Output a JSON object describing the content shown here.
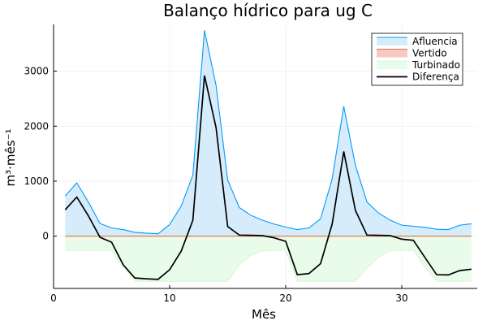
{
  "chart_data": {
    "type": "area",
    "title": "Balanço hídrico para ug C",
    "xlabel": "Mês",
    "ylabel": "m³·mês⁻¹",
    "xlim": [
      0,
      36.5
    ],
    "ylim": [
      -950,
      3850
    ],
    "xticks": [
      0,
      10,
      20,
      30
    ],
    "yticks": [
      0,
      1000,
      2000,
      3000
    ],
    "grid": true,
    "legend_position": "top-right",
    "colors": {
      "afluencia_line": "#009AFA",
      "afluencia_fill": "#D6ECFB",
      "vertido_line": "#E26F46",
      "vertido_fill": "#F8C9C2",
      "turbinado_line": "#D8F5D8",
      "turbinado_fill": "#E9FBE9",
      "diferenca_line": "#000000"
    },
    "x": [
      1,
      2,
      3,
      4,
      5,
      6,
      7,
      8,
      9,
      10,
      11,
      12,
      13,
      14,
      15,
      16,
      17,
      18,
      19,
      20,
      21,
      22,
      23,
      24,
      25,
      26,
      27,
      28,
      29,
      30,
      31,
      32,
      33,
      34,
      35,
      36
    ],
    "series": [
      {
        "name": "Afluencia",
        "style": "filled-area",
        "values": [
          730,
          970,
          620,
          230,
          150,
          120,
          70,
          55,
          45,
          210,
          550,
          1110,
          3740,
          2740,
          1020,
          520,
          380,
          290,
          220,
          165,
          120,
          150,
          315,
          1040,
          2360,
          1290,
          620,
          420,
          290,
          200,
          180,
          160,
          125,
          120,
          200,
          225
        ]
      },
      {
        "name": "Vertido",
        "style": "filled-area",
        "values": [
          0,
          0,
          0,
          0,
          0,
          0,
          0,
          0,
          0,
          0,
          0,
          0,
          0,
          0,
          0,
          0,
          0,
          0,
          0,
          0,
          0,
          0,
          0,
          0,
          0,
          0,
          0,
          0,
          0,
          0,
          0,
          0,
          0,
          0,
          0,
          0
        ]
      },
      {
        "name": "Turbinado",
        "style": "filled-area",
        "values": [
          -260,
          -260,
          -260,
          -260,
          -260,
          -560,
          -820,
          -820,
          -820,
          -820,
          -820,
          -820,
          -820,
          -820,
          -820,
          -520,
          -350,
          -270,
          -260,
          -260,
          -820,
          -820,
          -820,
          -820,
          -820,
          -820,
          -580,
          -380,
          -260,
          -260,
          -260,
          -560,
          -820,
          -820,
          -820,
          -820
        ]
      },
      {
        "name": "Diferença",
        "style": "line",
        "values": [
          480,
          710,
          370,
          -20,
          -110,
          -520,
          -760,
          -775,
          -785,
          -610,
          -270,
          290,
          2920,
          1970,
          175,
          20,
          15,
          10,
          -30,
          -95,
          -700,
          -680,
          -500,
          220,
          1540,
          470,
          20,
          15,
          10,
          -55,
          -75,
          -390,
          -700,
          -705,
          -625,
          -600
        ]
      }
    ]
  }
}
